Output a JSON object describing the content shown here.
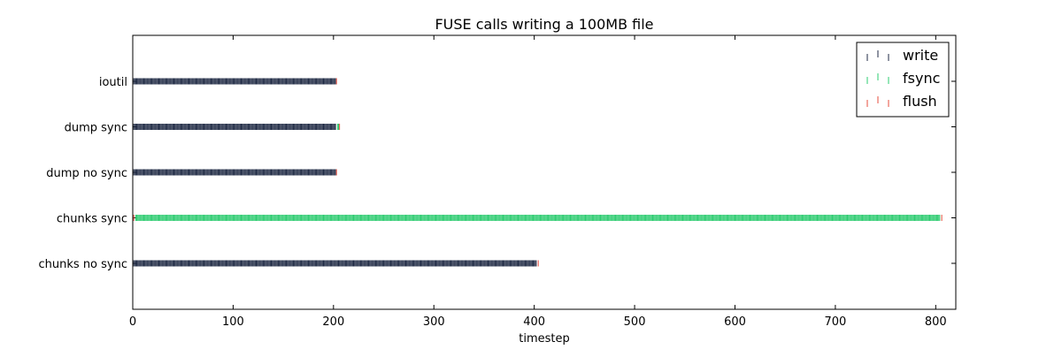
{
  "chart_data": {
    "type": "scatter",
    "title": "FUSE calls writing a 100MB file",
    "xlabel": "timestep",
    "ylabel": "",
    "xlim": [
      0,
      820
    ],
    "x_ticks": [
      0,
      100,
      200,
      300,
      400,
      500,
      600,
      700,
      800
    ],
    "categories": [
      "ioutil",
      "dump sync",
      "dump no sync",
      "chunks sync",
      "chunks no sync"
    ],
    "grid": false,
    "legend_position": "top-right",
    "series": [
      {
        "name": "write",
        "color": "#1f2a44",
        "points": {
          "ioutil": [
            [
              1,
              202
            ]
          ],
          "dump sync": [
            [
              1,
              202
            ]
          ],
          "dump no sync": [
            [
              1,
              202
            ]
          ],
          "chunks sync": [],
          "chunks no sync": [
            [
              1,
              402
            ]
          ]
        }
      },
      {
        "name": "fsync",
        "color": "#2ecc71",
        "points": {
          "ioutil": [],
          "dump sync": [
            [
              204,
              205
            ]
          ],
          "dump no sync": [],
          "chunks sync": [
            [
              3,
              804
            ]
          ],
          "chunks no sync": []
        }
      },
      {
        "name": "flush",
        "color": "#e74c3c",
        "points": {
          "ioutil": [
            [
              203,
              203
            ]
          ],
          "dump sync": [
            [
              206,
              206
            ]
          ],
          "dump no sync": [
            [
              203,
              203
            ]
          ],
          "chunks sync": [
            [
              1,
              1
            ],
            [
              806,
              806
            ]
          ],
          "chunks no sync": [
            [
              404,
              404
            ]
          ]
        }
      }
    ]
  }
}
